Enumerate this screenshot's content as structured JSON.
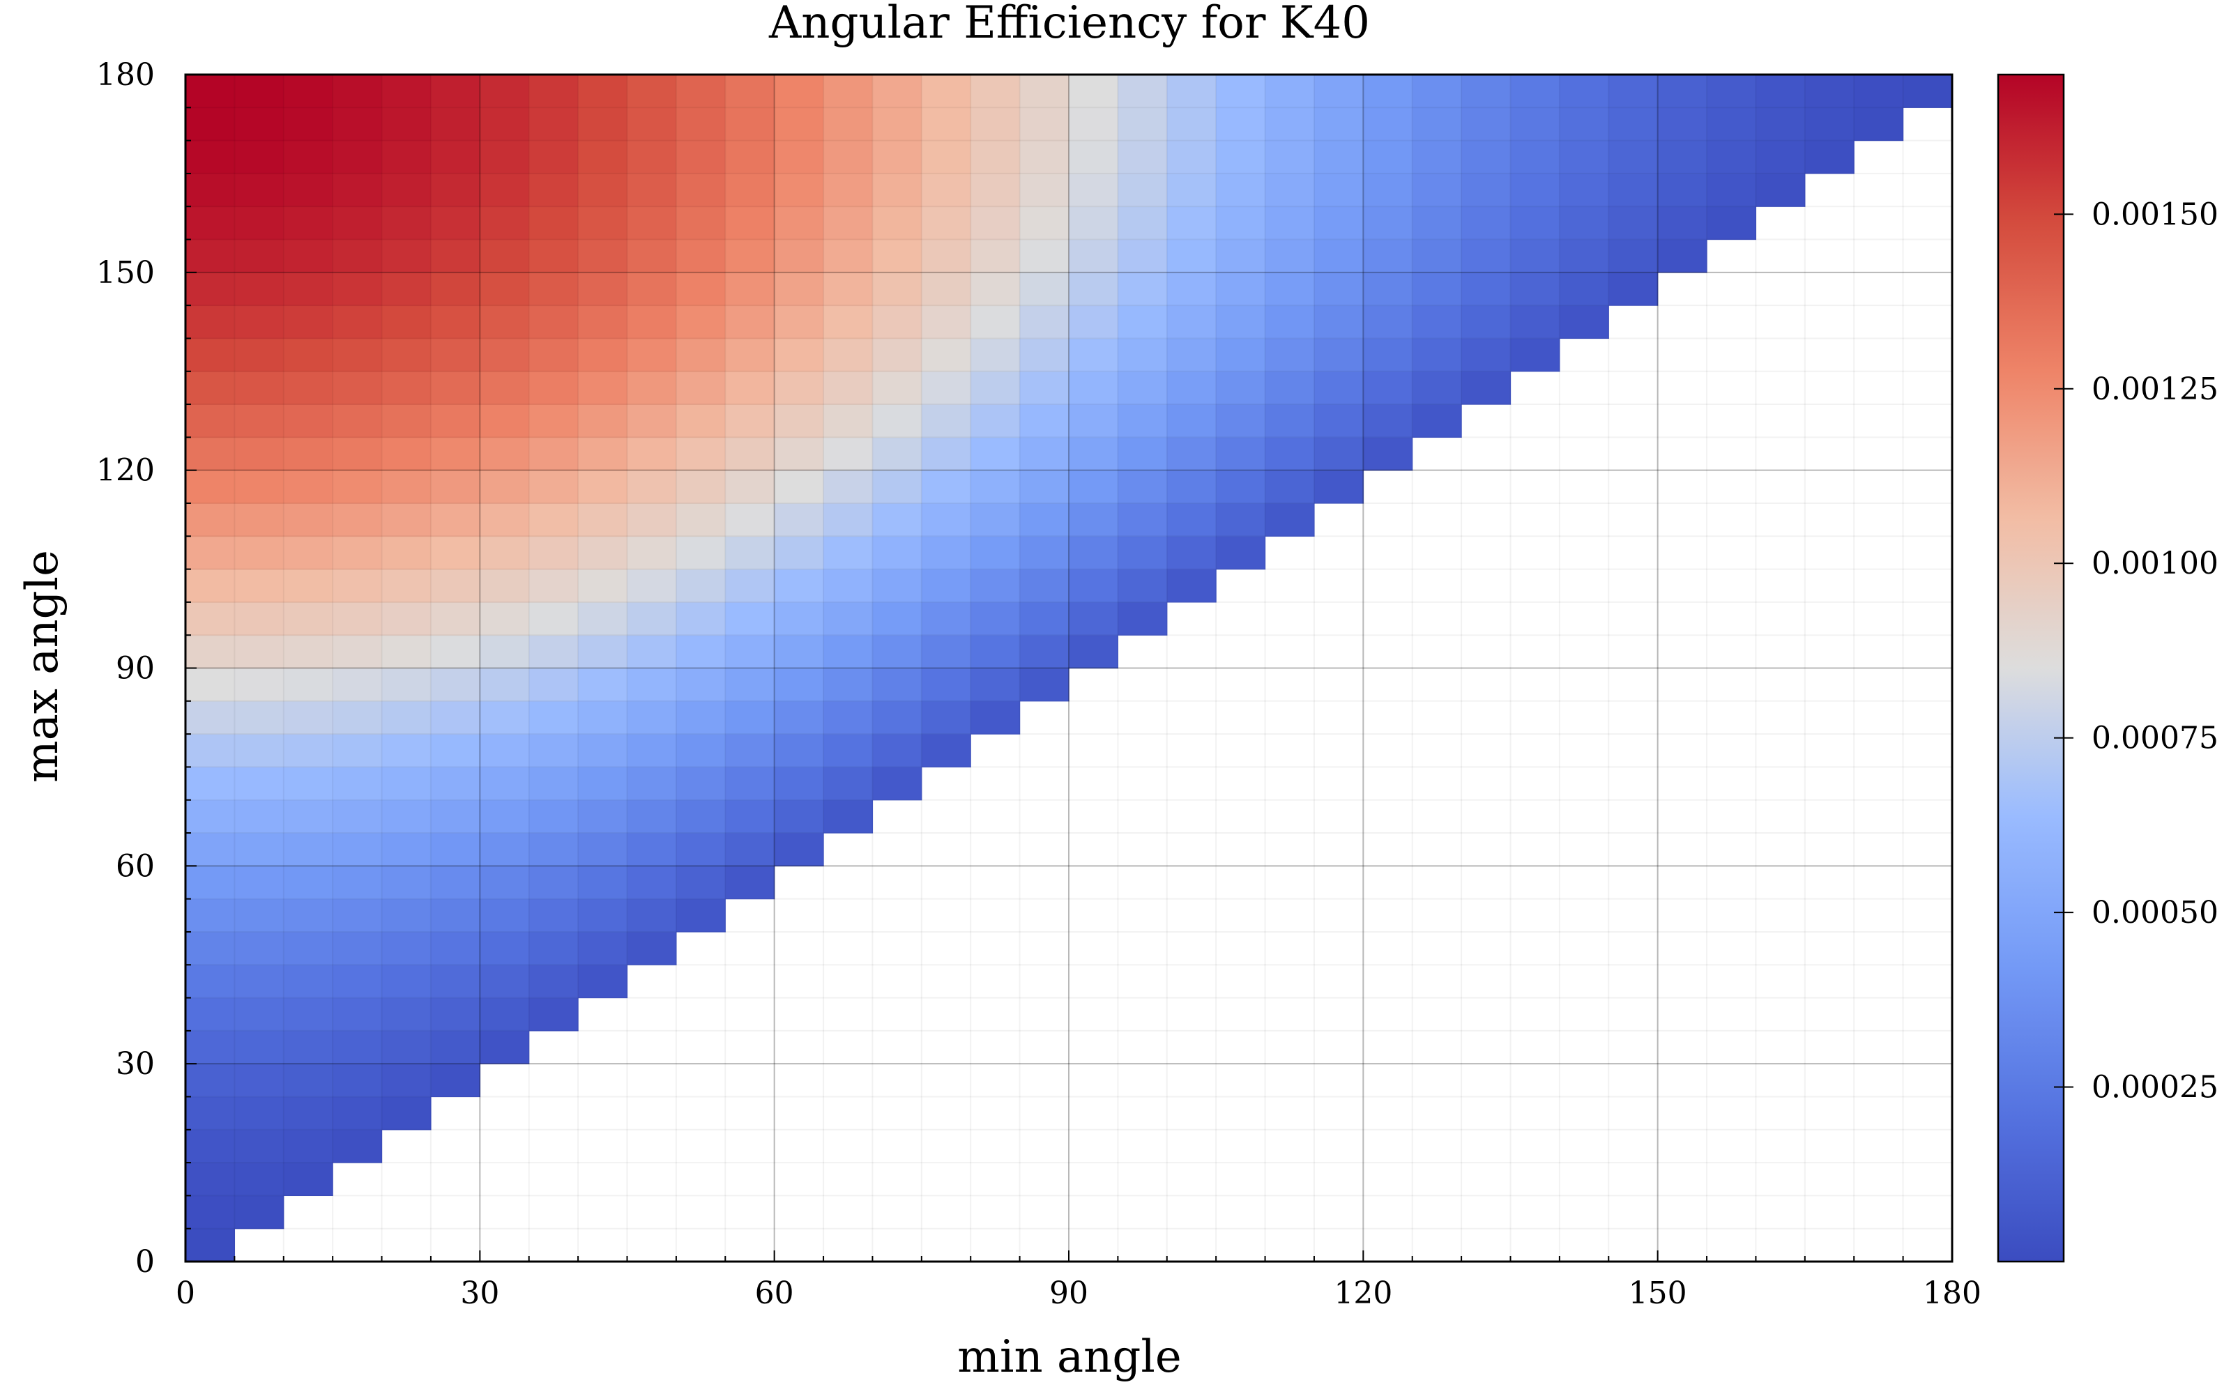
{
  "chart_data": {
    "type": "heatmap",
    "title": "Angular Efficiency for K40",
    "xlabel": "min angle",
    "ylabel": "max angle",
    "xlim": [
      0,
      180
    ],
    "ylim": [
      0,
      180
    ],
    "x_ticks": [
      0,
      30,
      60,
      90,
      120,
      150,
      180
    ],
    "y_ticks": [
      0,
      30,
      60,
      90,
      120,
      150,
      180
    ],
    "x_tick_labels": [
      "0",
      "30",
      "60",
      "90",
      "120",
      "150",
      "180"
    ],
    "y_tick_labels": [
      "0",
      "30",
      "60",
      "90",
      "120",
      "150",
      "180"
    ],
    "bin_width": 5,
    "bins": [
      0,
      5,
      10,
      15,
      20,
      25,
      30,
      35,
      40,
      45,
      50,
      55,
      60,
      65,
      70,
      75,
      80,
      85,
      90,
      95,
      100,
      105,
      110,
      115,
      120,
      125,
      130,
      135,
      140,
      145,
      150,
      155,
      160,
      165,
      170,
      175
    ],
    "cell_rule": "cell [min, max] filled where max >= min",
    "value_range": [
      0.0,
      0.0017
    ],
    "value_model": "efficiency ≈ 0.00085 * (cos(min angle) - cos(max angle + 5)); values estimated from color",
    "grid": true,
    "colorbar": {
      "colormap": "coolwarm",
      "ticks": [
        0.00025,
        0.0005,
        0.00075,
        0.001,
        0.00125,
        0.0015
      ],
      "tick_labels": [
        "0.00025",
        "0.00050",
        "0.00075",
        "0.00100",
        "0.00125",
        "0.00150"
      ],
      "range": [
        0.0,
        0.0017
      ]
    },
    "colors": {
      "low": "#3b4cc0",
      "mid": "#dddddd",
      "high": "#b40426"
    }
  }
}
